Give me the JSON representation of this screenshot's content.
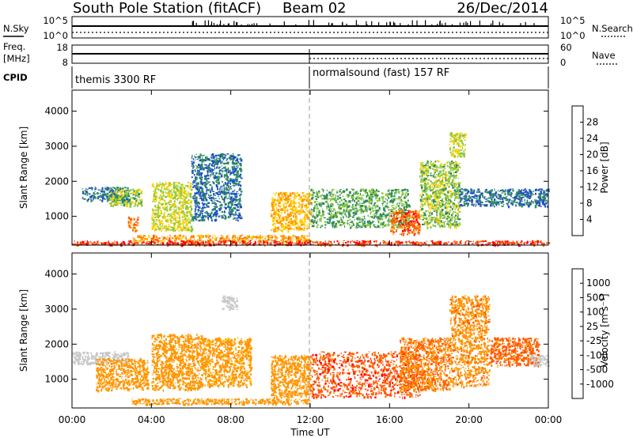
{
  "header": {
    "station": "South Pole Station (fitACF)",
    "beam": "Beam 02",
    "date": "26/Dec/2014"
  },
  "summary": {
    "nsky_label": "N.Sky",
    "nsky_ticks": [
      "10^5",
      "10^0"
    ],
    "nsearch_label": "N.Search",
    "nsearch_ticks": [
      "10^5",
      "10^0"
    ],
    "freq_label": "Freq.",
    "freq_unit": "[MHz]",
    "freq_ticks": [
      "18",
      "8"
    ],
    "nave_label": "Nave",
    "nave_ticks": [
      "60",
      "0"
    ],
    "cpid_label": "CPID",
    "cpid_segments": [
      {
        "start_h": 0,
        "end_h": 12,
        "label": "themis 3300 RF"
      },
      {
        "start_h": 12,
        "end_h": 24,
        "label": "normalsound (fast) 157 RF"
      }
    ]
  },
  "chart_data": [
    {
      "type": "heatmap",
      "name": "power-panel",
      "xlabel": "",
      "ylabel": "Slant Range [km]",
      "xlim": [
        0,
        24
      ],
      "ylim": [
        180,
        4600
      ],
      "yticks": [
        "1000",
        "2000",
        "3000",
        "4000"
      ],
      "ytick_values": [
        1000,
        2000,
        3000,
        4000
      ],
      "colorbar": {
        "label": "Power [dB]",
        "ticks": [
          "4",
          "8",
          "12",
          "16",
          "20",
          "24",
          "28"
        ],
        "range": [
          0,
          32
        ],
        "colors": [
          "#0000ff",
          "#1e4fc8",
          "#2d8a5e",
          "#8cc83c",
          "#ffd200",
          "#ff9600",
          "#ff5a00",
          "#ff0000"
        ]
      },
      "echo_regions": [
        {
          "h0": 0.5,
          "h1": 2.8,
          "r0": 1450,
          "r1": 1850,
          "value": 8
        },
        {
          "h0": 1.8,
          "h1": 3.5,
          "r0": 1300,
          "r1": 1800,
          "value": 14
        },
        {
          "h0": 2.8,
          "h1": 3.3,
          "r0": 600,
          "r1": 1000,
          "value": 24
        },
        {
          "h0": 4.0,
          "h1": 6.0,
          "r0": 600,
          "r1": 2000,
          "value": 16
        },
        {
          "h0": 6.0,
          "h1": 8.5,
          "r0": 900,
          "r1": 2800,
          "value": 8
        },
        {
          "h0": 10.0,
          "h1": 12.0,
          "r0": 600,
          "r1": 1700,
          "value": 20
        },
        {
          "h0": 3.0,
          "h1": 12.0,
          "r0": 300,
          "r1": 480,
          "value": 22
        },
        {
          "h0": 12.0,
          "h1": 17.0,
          "r0": 700,
          "r1": 1800,
          "value": 12
        },
        {
          "h0": 16.0,
          "h1": 17.5,
          "r0": 500,
          "r1": 1200,
          "value": 26
        },
        {
          "h0": 17.5,
          "h1": 19.5,
          "r0": 700,
          "r1": 2600,
          "value": 14
        },
        {
          "h0": 19.5,
          "h1": 24.0,
          "r0": 1300,
          "r1": 1800,
          "value": 8
        },
        {
          "h0": 19.0,
          "h1": 19.8,
          "r0": 2700,
          "r1": 3400,
          "value": 16
        },
        {
          "h0": 0.0,
          "h1": 24.0,
          "r0": 200,
          "r1": 320,
          "value": 28
        }
      ]
    },
    {
      "type": "heatmap",
      "name": "velocity-panel",
      "xlabel": "Time UT",
      "ylabel": "Slant Range [km]",
      "xlim": [
        0,
        24
      ],
      "ylim": [
        180,
        4600
      ],
      "xticks": [
        "00:00",
        "04:00",
        "08:00",
        "12:00",
        "16:00",
        "20:00",
        "00:00"
      ],
      "xtick_values": [
        0,
        4,
        8,
        12,
        16,
        20,
        24
      ],
      "yticks": [
        "1000",
        "2000",
        "3000",
        "4000"
      ],
      "ytick_values": [
        1000,
        2000,
        3000,
        4000
      ],
      "colorbar": {
        "label": "Velocity [m s⁻¹]",
        "ticks": [
          "1000",
          "500",
          "100",
          "25",
          "-25",
          "-100",
          "-500",
          "-1000"
        ],
        "colors": [
          "#1e3cc8",
          "#2878b4",
          "#2d9650",
          "#64c83c",
          "#c8c8c8",
          "#ffd200",
          "#ff9600",
          "#ff5a00",
          "#ff0000"
        ]
      },
      "echo_regions": [
        {
          "h0": 0.0,
          "h1": 2.8,
          "r0": 1450,
          "r1": 1800,
          "value": 0
        },
        {
          "h0": 1.2,
          "h1": 3.8,
          "r0": 700,
          "r1": 1600,
          "value": -200
        },
        {
          "h0": 4.0,
          "h1": 6.5,
          "r0": 700,
          "r1": 2300,
          "value": -300
        },
        {
          "h0": 6.5,
          "h1": 9.0,
          "r0": 800,
          "r1": 2200,
          "value": -150
        },
        {
          "h0": 7.5,
          "h1": 8.3,
          "r0": 3000,
          "r1": 3400,
          "value": 0
        },
        {
          "h0": 10.0,
          "h1": 12.0,
          "r0": 500,
          "r1": 1700,
          "value": -300
        },
        {
          "h0": 12.0,
          "h1": 17.5,
          "r0": 500,
          "r1": 1800,
          "value": -800
        },
        {
          "h0": 16.5,
          "h1": 19.0,
          "r0": 700,
          "r1": 2200,
          "value": -500
        },
        {
          "h0": 19.0,
          "h1": 21.0,
          "r0": 800,
          "r1": 3400,
          "value": -400
        },
        {
          "h0": 21.0,
          "h1": 23.5,
          "r0": 1400,
          "r1": 2200,
          "value": -700
        },
        {
          "h0": 23.0,
          "h1": 24.0,
          "r0": 1400,
          "r1": 1700,
          "value": 0
        },
        {
          "h0": 3.0,
          "h1": 12.0,
          "r0": 300,
          "r1": 460,
          "value": -200
        }
      ]
    }
  ]
}
